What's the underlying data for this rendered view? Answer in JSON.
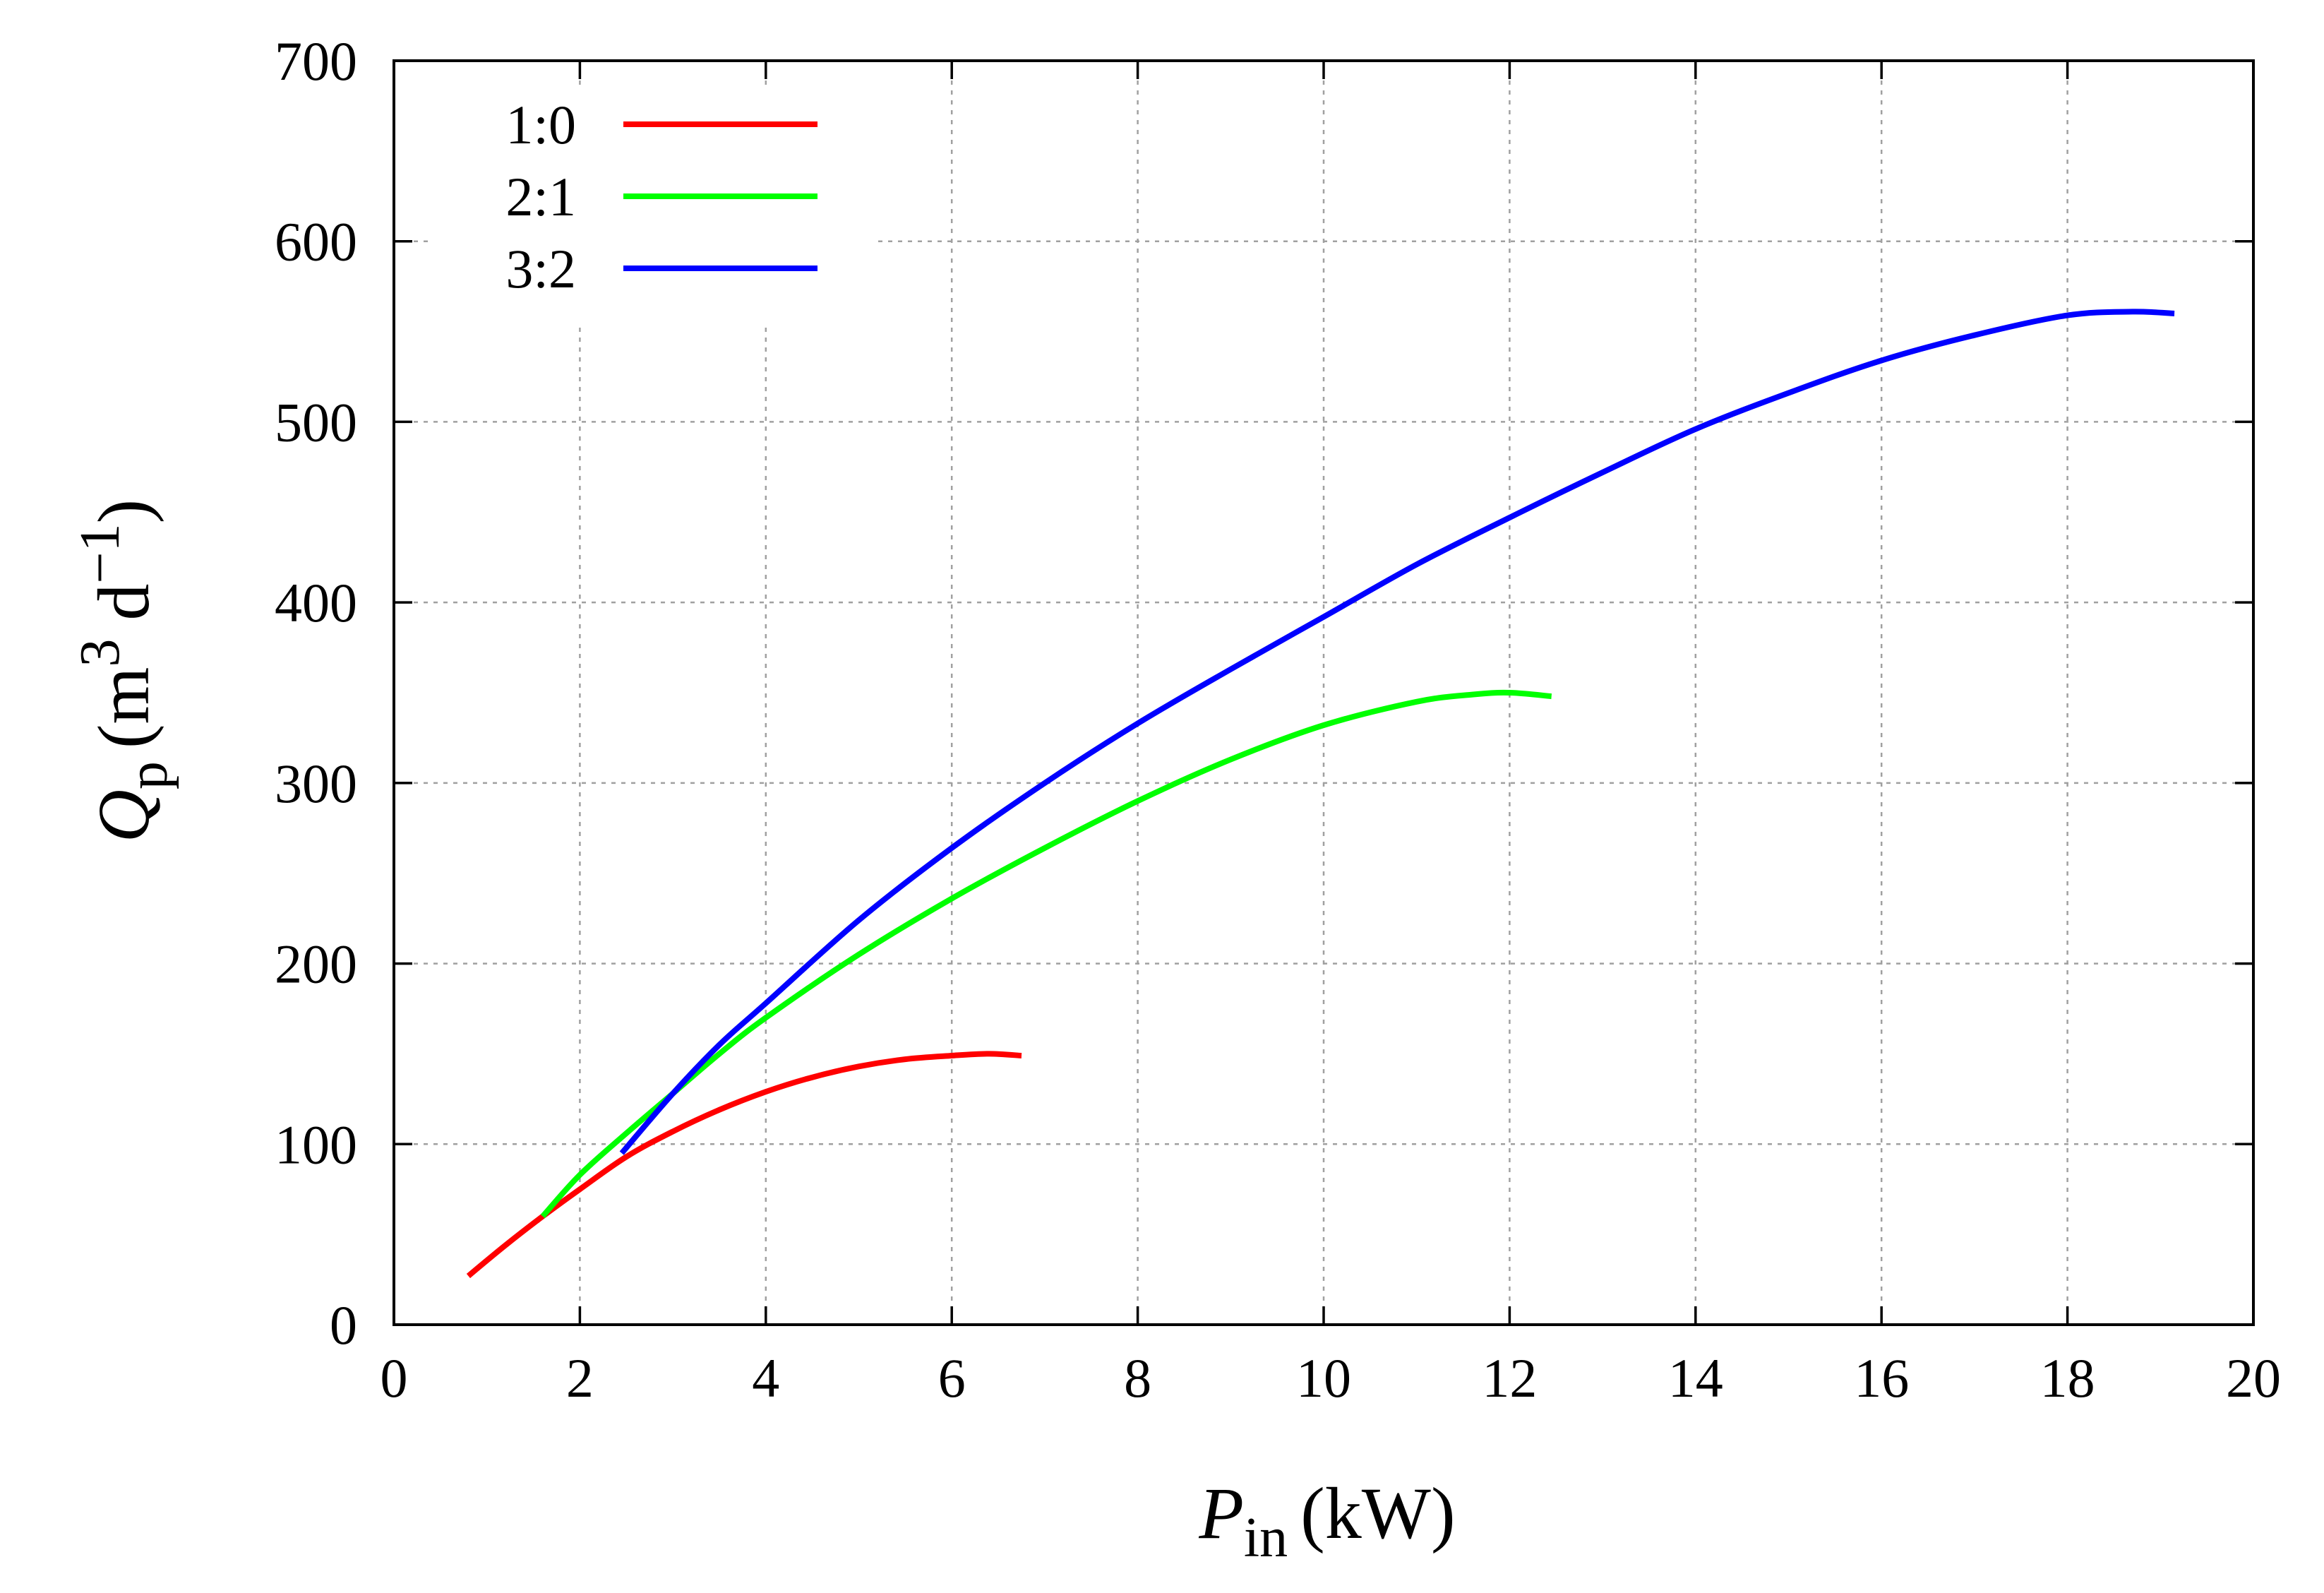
{
  "chart_data": {
    "type": "line",
    "title": "",
    "xlabel": {
      "main": "P",
      "sub": "in",
      "unit": "(kW)"
    },
    "ylabel": {
      "main": "Q",
      "sub": "p",
      "unit_open": "(m",
      "unit_exp1": "3",
      "unit_mid": " d",
      "unit_exp2": "−1",
      "unit_close": ")"
    },
    "xlim": [
      0,
      20
    ],
    "ylim": [
      0,
      700
    ],
    "xticks": [
      0,
      2,
      4,
      6,
      8,
      10,
      12,
      14,
      16,
      18,
      20
    ],
    "yticks": [
      0,
      100,
      200,
      300,
      400,
      500,
      600,
      700
    ],
    "grid": true,
    "legend_position": "top-left",
    "series": [
      {
        "name": "1:0",
        "color": "#ff0000",
        "x": [
          0.8,
          1.2,
          1.6,
          2.0,
          2.5,
          3.0,
          3.5,
          4.0,
          4.5,
          5.0,
          5.5,
          6.0,
          6.4,
          6.75
        ],
        "y": [
          27,
          44,
          60,
          75,
          93,
          107,
          119,
          129,
          137,
          143,
          147,
          149,
          150,
          149
        ]
      },
      {
        "name": "2:1",
        "color": "#00ff00",
        "x": [
          1.6,
          2.0,
          2.5,
          3.0,
          3.5,
          4.0,
          5.0,
          6.0,
          7.0,
          8.0,
          9.0,
          10.0,
          11.0,
          11.6,
          12.0,
          12.45
        ],
        "y": [
          60,
          83,
          106,
          128,
          150,
          170,
          205,
          236,
          264,
          290,
          313,
          332,
          345,
          349,
          350,
          348
        ]
      },
      {
        "name": "3:2",
        "color": "#0000ff",
        "x": [
          2.45,
          3.0,
          3.5,
          4.0,
          5.0,
          6.0,
          7.0,
          8.0,
          9.0,
          10.0,
          11.0,
          12.0,
          13.0,
          14.0,
          15.0,
          16.0,
          17.0,
          18.0,
          18.7,
          19.15
        ],
        "y": [
          95,
          128,
          155,
          178,
          224,
          264,
          300,
          333,
          363,
          392,
          421,
          447,
          472,
          496,
          516,
          534,
          548,
          559,
          561,
          560
        ]
      }
    ]
  }
}
